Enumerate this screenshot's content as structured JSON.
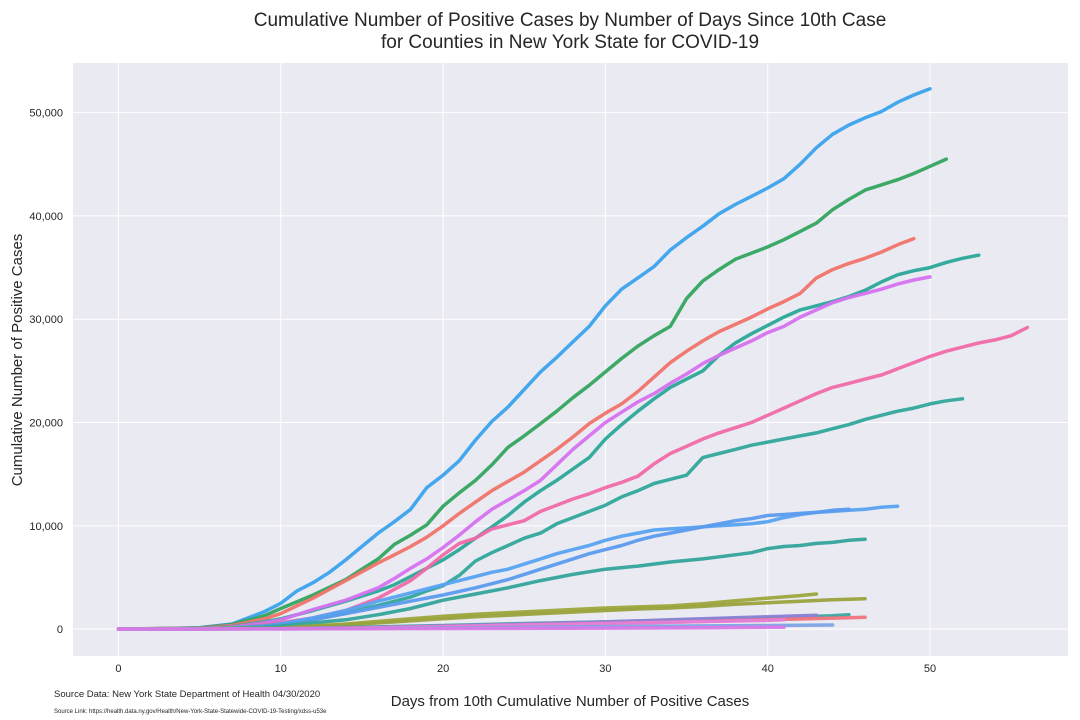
{
  "chart_data": {
    "type": "line",
    "title": [
      "Cumulative Number of Positive Cases by Number of Days Since 10th Case",
      "for Counties in New York State for COVID-19"
    ],
    "xlabel": "Days from 10th Cumulative Number of Positive Cases",
    "ylabel": "Cumulative Number of Positive Cases",
    "xlim": [
      -2.8,
      58.5
    ],
    "ylim": [
      -2600,
      54800
    ],
    "xticks": [
      0,
      10,
      20,
      30,
      40,
      50
    ],
    "yticks": [
      0,
      10000,
      20000,
      30000,
      40000,
      50000
    ],
    "yticklabels": [
      "0",
      "10,000",
      "20,000",
      "30,000",
      "40,000",
      "50,000"
    ],
    "grid": true,
    "legend": "none",
    "style": {
      "background": "#eaeaf2",
      "gridcolor": "#ffffff"
    },
    "source": "Source Data: New York State Department of Health 04/30/2020",
    "source_link": "Source Link: https://health.data.ny.gov/Health/New-York-State-Statewide-COVID-19-Testing/xdss-u53e",
    "series": [
      {
        "color": "#3ba3ec",
        "x": [
          0,
          3,
          5,
          7,
          9,
          10,
          11,
          12,
          13,
          14,
          15,
          16,
          17,
          18,
          19,
          20,
          21,
          22,
          23,
          24,
          25,
          26,
          27,
          28,
          29,
          30,
          31,
          32,
          33,
          34,
          35,
          36,
          37,
          38,
          39,
          40,
          41,
          42,
          43,
          44,
          45,
          46,
          47,
          48,
          49,
          50
        ],
        "y": [
          0,
          50,
          150,
          500,
          1700,
          2500,
          3700,
          4500,
          5500,
          6700,
          8000,
          9300,
          10400,
          11600,
          13700,
          14900,
          16300,
          18300,
          20100,
          21500,
          23200,
          24900,
          26300,
          27800,
          29300,
          31300,
          32900,
          34000,
          35100,
          36700,
          37900,
          39000,
          40200,
          41100,
          41900,
          42700,
          43600,
          45000,
          46600,
          47900,
          48800,
          49500,
          50100,
          51000,
          51700,
          52300
        ]
      },
      {
        "color": "#34a55f",
        "x": [
          0,
          5,
          7,
          9,
          10,
          12,
          14,
          15,
          16,
          17,
          18,
          19,
          20,
          21,
          22,
          23,
          24,
          25,
          26,
          27,
          28,
          29,
          30,
          31,
          32,
          33,
          34,
          35,
          36,
          37,
          38,
          39,
          40,
          41,
          42,
          43,
          44,
          45,
          46,
          47,
          48,
          49,
          50,
          51
        ],
        "y": [
          0,
          120,
          450,
          1300,
          2000,
          3300,
          4800,
          5800,
          6800,
          8200,
          9100,
          10100,
          11900,
          13200,
          14400,
          15900,
          17600,
          18700,
          19900,
          21100,
          22400,
          23600,
          24900,
          26200,
          27400,
          28400,
          29300,
          32000,
          33700,
          34800,
          35800,
          36400,
          37000,
          37700,
          38500,
          39300,
          40600,
          41600,
          42500,
          43000,
          43500,
          44100,
          44800,
          45500
        ]
      },
      {
        "color": "#f0736a",
        "x": [
          0,
          5,
          7,
          9,
          10,
          12,
          14,
          16,
          17,
          18,
          19,
          20,
          21,
          22,
          23,
          24,
          25,
          26,
          27,
          28,
          29,
          30,
          31,
          32,
          33,
          34,
          35,
          36,
          37,
          38,
          39,
          40,
          41,
          42,
          43,
          44,
          45,
          46,
          47,
          48,
          49
        ],
        "y": [
          0,
          100,
          350,
          1000,
          1500,
          3000,
          4700,
          6400,
          7200,
          8000,
          8900,
          10000,
          11200,
          12300,
          13400,
          14300,
          15200,
          16300,
          17400,
          18600,
          19900,
          20900,
          21800,
          23000,
          24400,
          25800,
          26900,
          27900,
          28800,
          29500,
          30200,
          31000,
          31700,
          32500,
          34000,
          34800,
          35400,
          35900,
          36500,
          37200,
          37800
        ]
      },
      {
        "color": "#2aa898",
        "x": [
          0,
          5,
          7,
          9,
          10,
          12,
          14,
          16,
          17,
          18,
          19,
          20,
          21,
          22,
          23,
          24,
          25,
          26,
          27,
          28,
          29,
          30,
          31,
          32,
          33,
          34,
          35,
          36,
          37,
          38,
          39,
          40,
          41,
          42,
          43,
          44,
          45,
          46,
          47,
          48,
          49,
          50,
          51,
          52,
          53
        ],
        "y": [
          0,
          80,
          250,
          700,
          1000,
          1800,
          2700,
          3700,
          4300,
          5100,
          5900,
          6700,
          7700,
          8800,
          9900,
          11000,
          12300,
          13400,
          14400,
          15500,
          16600,
          18400,
          19800,
          21100,
          22300,
          23400,
          24200,
          25000,
          26500,
          27700,
          28600,
          29400,
          30200,
          30900,
          31300,
          31700,
          32200,
          32800,
          33600,
          34300,
          34700,
          35000,
          35500,
          35900,
          36200
        ]
      },
      {
        "color": "#d672ef",
        "x": [
          0,
          5,
          7,
          9,
          10,
          12,
          14,
          16,
          17,
          18,
          19,
          20,
          21,
          22,
          23,
          24,
          25,
          26,
          27,
          28,
          29,
          30,
          31,
          32,
          33,
          34,
          35,
          36,
          37,
          38,
          39,
          40,
          41,
          42,
          43,
          44,
          45,
          46,
          47,
          48,
          49,
          50
        ],
        "y": [
          0,
          60,
          200,
          600,
          900,
          1900,
          2800,
          4000,
          4900,
          5900,
          6800,
          7900,
          9100,
          10400,
          11600,
          12500,
          13400,
          14400,
          15900,
          17400,
          18700,
          20000,
          21000,
          22000,
          22800,
          23800,
          24700,
          25700,
          26500,
          27200,
          27900,
          28700,
          29300,
          30200,
          30900,
          31600,
          32100,
          32500,
          32900,
          33400,
          33800,
          34100
        ]
      },
      {
        "color": "#f06aa6",
        "x": [
          0,
          5,
          7,
          9,
          10,
          12,
          14,
          16,
          18,
          19,
          20,
          21,
          22,
          23,
          24,
          25,
          26,
          27,
          28,
          29,
          30,
          31,
          32,
          33,
          34,
          35,
          36,
          37,
          38,
          39,
          40,
          41,
          42,
          43,
          44,
          45,
          46,
          47,
          48,
          49,
          50,
          51,
          52,
          53,
          54,
          55,
          56
        ],
        "y": [
          0,
          40,
          150,
          400,
          600,
          1100,
          1800,
          3000,
          4700,
          5900,
          7200,
          8300,
          8800,
          9700,
          10100,
          10500,
          11400,
          12000,
          12600,
          13100,
          13700,
          14200,
          14800,
          16000,
          17000,
          17700,
          18400,
          19000,
          19500,
          20000,
          20700,
          21400,
          22100,
          22800,
          23400,
          23800,
          24200,
          24600,
          25200,
          25800,
          26400,
          26900,
          27300,
          27700,
          28000,
          28400,
          29200
        ]
      },
      {
        "color": "#32a89a",
        "x": [
          0,
          5,
          7,
          9,
          10,
          12,
          14,
          16,
          18,
          19,
          20,
          21,
          22,
          23,
          24,
          25,
          26,
          27,
          28,
          29,
          30,
          31,
          32,
          33,
          34,
          35,
          36,
          37,
          38,
          39,
          40,
          41,
          42,
          43,
          44,
          45,
          46,
          47,
          48,
          49,
          50,
          51,
          52
        ],
        "y": [
          0,
          40,
          120,
          300,
          500,
          1000,
          1600,
          2300,
          3100,
          3700,
          4200,
          5200,
          6600,
          7400,
          8100,
          8800,
          9300,
          10200,
          10800,
          11400,
          12000,
          12800,
          13400,
          14100,
          14500,
          14900,
          16600,
          17000,
          17400,
          17800,
          18100,
          18400,
          18700,
          19000,
          19400,
          19800,
          20300,
          20700,
          21100,
          21400,
          21800,
          22100,
          22300
        ]
      },
      {
        "color": "#59a3f1",
        "x": [
          0,
          5,
          7,
          9,
          10,
          12,
          14,
          16,
          18,
          20,
          21,
          22,
          23,
          24,
          25,
          26,
          27,
          28,
          29,
          30,
          31,
          32,
          33,
          34,
          35,
          36,
          37,
          38,
          39,
          40,
          41,
          42,
          43,
          44,
          45,
          46,
          47,
          48
        ],
        "y": [
          0,
          30,
          120,
          300,
          500,
          1100,
          1800,
          2700,
          3500,
          4300,
          4700,
          5100,
          5500,
          5800,
          6300,
          6800,
          7300,
          7700,
          8100,
          8600,
          9000,
          9300,
          9600,
          9700,
          9800,
          9900,
          10000,
          10100,
          10200,
          10400,
          10800,
          11100,
          11300,
          11400,
          11500,
          11600,
          11800,
          11900
        ]
      },
      {
        "color": "#5b9bed",
        "x": [
          0,
          5,
          7,
          9,
          10,
          12,
          14,
          16,
          18,
          20,
          22,
          23,
          24,
          25,
          26,
          27,
          28,
          29,
          30,
          31,
          32,
          33,
          34,
          35,
          36,
          37,
          38,
          39,
          40,
          41,
          42,
          43,
          44,
          45
        ],
        "y": [
          0,
          30,
          100,
          300,
          400,
          900,
          1500,
          2100,
          2700,
          3300,
          4000,
          4400,
          4800,
          5300,
          5800,
          6300,
          6800,
          7300,
          7700,
          8100,
          8600,
          9000,
          9300,
          9600,
          9900,
          10200,
          10500,
          10700,
          11000,
          11100,
          11200,
          11300,
          11500,
          11600
        ]
      },
      {
        "color": "#33a49a",
        "x": [
          0,
          5,
          7,
          9,
          10,
          12,
          14,
          16,
          18,
          20,
          22,
          24,
          26,
          28,
          30,
          32,
          34,
          36,
          38,
          39,
          40,
          41,
          42,
          43,
          44,
          45,
          46
        ],
        "y": [
          0,
          20,
          80,
          200,
          300,
          600,
          900,
          1400,
          2000,
          2800,
          3400,
          4000,
          4700,
          5300,
          5800,
          6100,
          6500,
          6800,
          7200,
          7400,
          7800,
          8000,
          8100,
          8300,
          8400,
          8600,
          8700
        ]
      },
      {
        "color": "#9da63a",
        "x": [
          0,
          10,
          12,
          14,
          16,
          18,
          20,
          22,
          24,
          26,
          28,
          30,
          32,
          34,
          36,
          38,
          40,
          42,
          43
        ],
        "y": [
          0,
          100,
          300,
          500,
          750,
          1000,
          1250,
          1450,
          1600,
          1750,
          1900,
          2050,
          2150,
          2250,
          2450,
          2750,
          3000,
          3250,
          3400
        ]
      },
      {
        "color": "#9aa23c",
        "x": [
          0,
          10,
          12,
          14,
          16,
          18,
          20,
          22,
          24,
          26,
          28,
          30,
          32,
          34,
          36,
          38,
          40,
          42,
          44,
          46
        ],
        "y": [
          0,
          80,
          250,
          400,
          600,
          800,
          1000,
          1200,
          1350,
          1500,
          1650,
          1800,
          1950,
          2050,
          2200,
          2400,
          2550,
          2700,
          2850,
          2950
        ]
      },
      {
        "color": "#3ba7a0",
        "x": [
          0,
          10,
          15,
          20,
          25,
          30,
          35,
          40,
          43,
          44,
          45
        ],
        "y": [
          0,
          50,
          200,
          350,
          550,
          700,
          900,
          1100,
          1250,
          1300,
          1400
        ]
      },
      {
        "color": "#8c82d6",
        "x": [
          0,
          10,
          15,
          20,
          25,
          30,
          35,
          40,
          43
        ],
        "y": [
          0,
          50,
          150,
          300,
          500,
          700,
          950,
          1200,
          1350
        ]
      },
      {
        "color": "#f0737d",
        "x": [
          0,
          10,
          15,
          20,
          25,
          30,
          35,
          40,
          45,
          46
        ],
        "y": [
          0,
          40,
          120,
          250,
          400,
          550,
          700,
          900,
          1100,
          1150
        ]
      },
      {
        "color": "#e57fd7",
        "x": [
          0,
          10,
          15,
          20,
          25,
          30,
          35,
          40,
          41
        ],
        "y": [
          0,
          40,
          100,
          250,
          400,
          550,
          700,
          850,
          900
        ]
      },
      {
        "color": "#7ea4e4",
        "x": [
          0,
          10,
          15,
          20,
          25,
          30,
          35,
          40,
          44
        ],
        "y": [
          0,
          20,
          60,
          120,
          180,
          250,
          300,
          350,
          400
        ]
      },
      {
        "color": "#d979e6",
        "x": [
          0,
          10,
          20,
          30,
          37,
          38,
          39,
          40,
          41
        ],
        "y": [
          0,
          20,
          60,
          100,
          150,
          160,
          170,
          180,
          180
        ]
      }
    ]
  }
}
